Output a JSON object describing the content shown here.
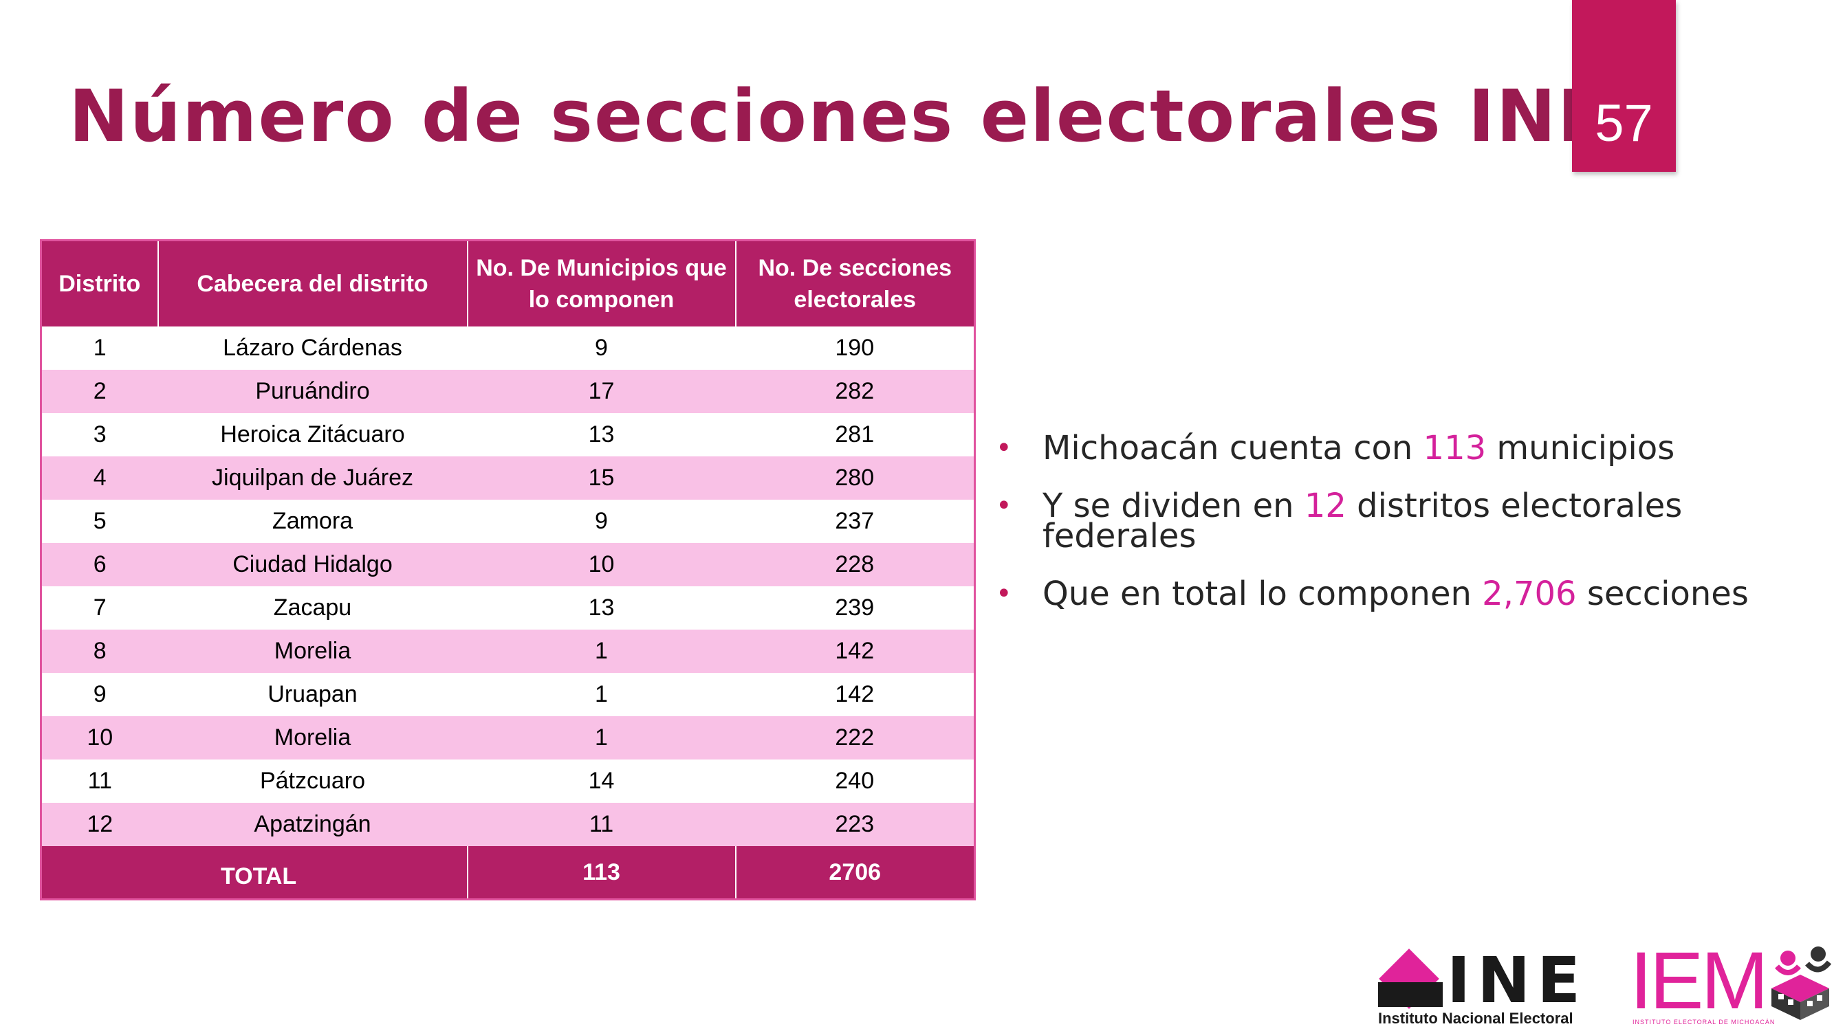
{
  "slide": {
    "title": "Número de secciones electorales INE",
    "page_number": "57"
  },
  "table": {
    "headers": {
      "distrito": "Distrito",
      "cabecera": "Cabecera del distrito",
      "municipios_line1": "No. De Municipios que",
      "municipios_line2": "lo componen",
      "secciones_line1": "No. De secciones",
      "secciones_line2": "electorales"
    },
    "rows": [
      {
        "distrito": "1",
        "cabecera": "Lázaro Cárdenas",
        "municipios": "9",
        "secciones": "190"
      },
      {
        "distrito": "2",
        "cabecera": "Puruándiro",
        "municipios": "17",
        "secciones": "282"
      },
      {
        "distrito": "3",
        "cabecera": "Heroica Zitácuaro",
        "municipios": "13",
        "secciones": "281"
      },
      {
        "distrito": "4",
        "cabecera": "Jiquilpan de Juárez",
        "municipios": "15",
        "secciones": "280"
      },
      {
        "distrito": "5",
        "cabecera": "Zamora",
        "municipios": "9",
        "secciones": "237"
      },
      {
        "distrito": "6",
        "cabecera": "Ciudad Hidalgo",
        "municipios": "10",
        "secciones": "228"
      },
      {
        "distrito": "7",
        "cabecera": "Zacapu",
        "municipios": "13",
        "secciones": "239"
      },
      {
        "distrito": "8",
        "cabecera": "Morelia",
        "municipios": "1",
        "secciones": "142"
      },
      {
        "distrito": "9",
        "cabecera": "Uruapan",
        "municipios": "1",
        "secciones": "142"
      },
      {
        "distrito": "10",
        "cabecera": "Morelia",
        "municipios": "1",
        "secciones": "222"
      },
      {
        "distrito": "11",
        "cabecera": "Pátzcuaro",
        "municipios": "14",
        "secciones": "240"
      },
      {
        "distrito": "12",
        "cabecera": "Apatzingán",
        "municipios": "11",
        "secciones": "223"
      }
    ],
    "total": {
      "label": "TOTAL",
      "municipios": "113",
      "secciones": "2706"
    }
  },
  "bullets": [
    {
      "before": "Michoacán cuenta con ",
      "highlight": "113",
      "after": " municipios"
    },
    {
      "before": "Y se dividen en ",
      "highlight": "12",
      "after": " distritos electorales federales"
    },
    {
      "before": "Que en total lo componen ",
      "highlight": "2,706",
      "after": " secciones"
    }
  ],
  "bullet_marker": "•",
  "colors": {
    "title": "#9a1b50",
    "accent": "#c2185b",
    "header_bg": "#b31f66",
    "alt_row": "#f9c1e6",
    "highlight": "#d4219b"
  },
  "logos": {
    "ine_text": "INE",
    "ine_subtitle": "Instituto Nacional Electoral",
    "iem_text": "IEM",
    "iem_subtitle": "INSTITUTO ELECTORAL DE MICHOACÁN"
  }
}
